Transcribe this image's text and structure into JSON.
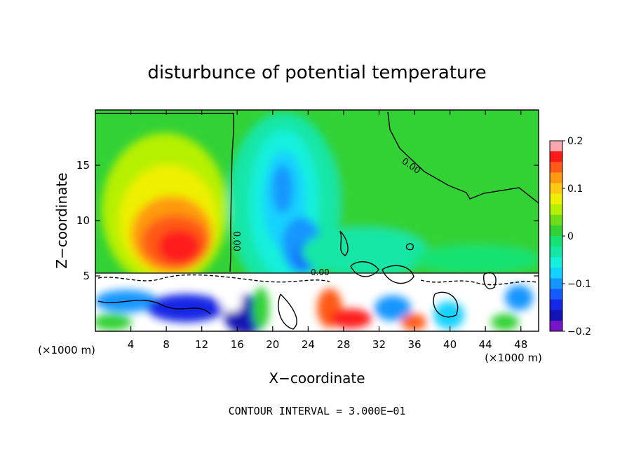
{
  "chart_data": {
    "type": "heatmap",
    "title": "disturbunce of potential temperature",
    "xlabel": "X−coordinate",
    "ylabel": "Z−coordinate",
    "xlim": [
      0,
      50
    ],
    "ylim": [
      0,
      20
    ],
    "x_unit_left": "(×1000 m)",
    "x_unit_right": "(×1000 m)",
    "x_ticks": [
      4,
      8,
      12,
      16,
      20,
      24,
      28,
      32,
      36,
      40,
      44,
      48
    ],
    "x_tick_labels": [
      "4",
      "8",
      "12",
      "16",
      "20",
      "24",
      "28",
      "32",
      "36",
      "40",
      "44",
      "48"
    ],
    "y_ticks": [
      5,
      10,
      15
    ],
    "y_tick_labels": [
      "5",
      "10",
      "15"
    ],
    "colorbar": {
      "range": [
        -0.2,
        0.2
      ],
      "ticks": [
        0.2,
        0.1,
        0,
        -0.1,
        -0.2
      ],
      "tick_labels": [
        "0.2",
        "0.1",
        "0",
        "−0.1",
        "−0.2"
      ],
      "colors": [
        "#f9a8ae",
        "#ff1a1a",
        "#ff5a18",
        "#ff9a10",
        "#ffc814",
        "#eef000",
        "#b6f000",
        "#6edc18",
        "#32d236",
        "#14e272",
        "#14e6a6",
        "#14f0dc",
        "#14d2ff",
        "#1496ff",
        "#145aff",
        "#1428e6",
        "#1414b4",
        "#7814c8"
      ]
    },
    "contour_interval_text": "CONTOUR INTERVAL = 3.000E−01",
    "contour_labels": [
      "0.00",
      "0.00",
      "0.00"
    ],
    "features": [
      {
        "name": "warm anomaly",
        "x": 10,
        "z": 7.5,
        "value": 0.12
      },
      {
        "name": "cold column",
        "x": 21.5,
        "z": 13,
        "value": -0.12
      },
      {
        "name": "cold anomaly",
        "x": 23.5,
        "z": 7,
        "value": -0.15
      },
      {
        "name": "zero line",
        "points": [
          [
            0,
            19.6
          ],
          [
            15,
            19.6
          ],
          [
            15,
            5.2
          ]
        ]
      },
      {
        "name": "zero line",
        "points": [
          [
            33.5,
            19.6
          ],
          [
            34,
            16.5
          ],
          [
            37,
            15
          ],
          [
            42,
            12.5
          ],
          [
            45,
            12.5
          ],
          [
            50,
            11.5
          ]
        ]
      },
      {
        "name": "mixed boundary layer",
        "z_range": [
          0,
          5.3
        ],
        "value": "mixed"
      }
    ]
  }
}
